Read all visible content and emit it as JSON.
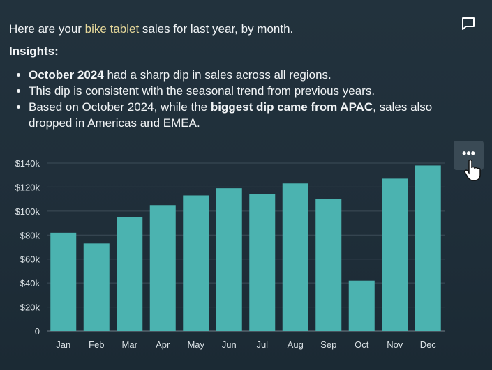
{
  "message": {
    "intro_before": "Here are your ",
    "intro_highlight": "bike tablet",
    "intro_after": " sales for last year, by month.",
    "insights_heading": "Insights:",
    "bullets": [
      {
        "bold": "October 2024",
        "text": " had a sharp dip in sales across all regions."
      },
      {
        "text": "This dip is consistent with the seasonal trend from previous years."
      },
      {
        "text_before": "Based on October 2024, while the ",
        "bold": "biggest dip came from APAC",
        "text_after": ", sales also dropped in Americas and EMEA."
      }
    ]
  },
  "icons": {
    "feedback": "comment-icon",
    "more": "more-options-icon",
    "cursor": "hand-pointer-icon"
  },
  "more_label": "•••",
  "colors": {
    "bar": "#4bb3b0",
    "highlight": "#e6d89a",
    "grid": "#3d4d58"
  },
  "chart_data": {
    "type": "bar",
    "title": "",
    "xlabel": "",
    "ylabel": "",
    "categories": [
      "Jan",
      "Feb",
      "Mar",
      "Apr",
      "May",
      "Jun",
      "Jul",
      "Aug",
      "Sep",
      "Oct",
      "Nov",
      "Dec"
    ],
    "values": [
      82000,
      73000,
      95000,
      105000,
      113000,
      119000,
      114000,
      123000,
      110000,
      42000,
      127000,
      138000
    ],
    "ylim": [
      0,
      140000
    ],
    "yticks": [
      0,
      20000,
      40000,
      60000,
      80000,
      100000,
      120000,
      140000
    ],
    "ytick_labels": [
      "0",
      "$20k",
      "$40k",
      "$60k",
      "$80k",
      "$100k",
      "$120k",
      "$140k"
    ],
    "grid": true
  }
}
